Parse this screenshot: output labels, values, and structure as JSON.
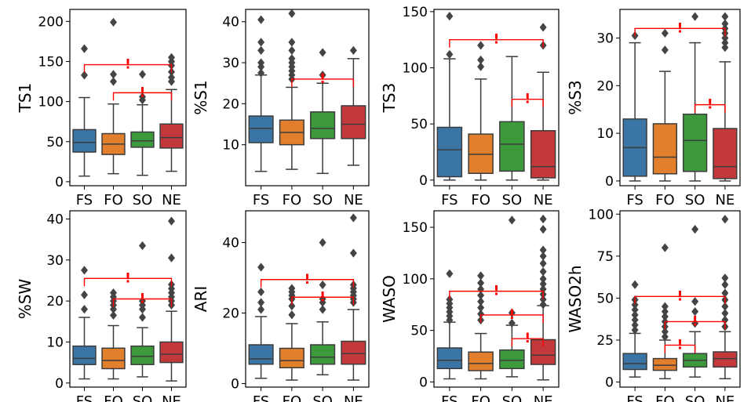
{
  "figure": {
    "colors": {
      "FS": "#3a75a6",
      "FO": "#e27f2d",
      "SO": "#3c9a3c",
      "NE": "#c3393b",
      "line": "#3c3c3c",
      "sig": "#ff0000",
      "frame": "#000000"
    },
    "sig_mark": "!"
  },
  "chart_data": [
    {
      "type": "box",
      "ylabel": "TS1",
      "categories": [
        "FS",
        "FO",
        "SO",
        "NE"
      ],
      "ylim": [
        -5,
        215
      ],
      "yticks": [
        0,
        50,
        100,
        150,
        200
      ],
      "boxes": [
        {
          "whislo": 7,
          "q1": 37,
          "med": 49,
          "q3": 65,
          "whishi": 105,
          "fliers": [
            133,
            166
          ]
        },
        {
          "whislo": 10,
          "q1": 34,
          "med": 47,
          "q3": 60,
          "whishi": 97,
          "fliers": [
            125,
            134,
            199
          ]
        },
        {
          "whislo": 8,
          "q1": 43,
          "med": 51,
          "q3": 62,
          "whishi": 96,
          "fliers": [
            102,
            106,
            134
          ]
        },
        {
          "whislo": 13,
          "q1": 42,
          "med": 55,
          "q3": 72,
          "whishi": 115,
          "fliers": [
            125,
            130,
            137,
            145,
            150,
            155
          ]
        }
      ],
      "significance": [
        {
          "from": "FS",
          "to": "NE",
          "y": 146
        },
        {
          "from": "FO",
          "to": "NE",
          "y": 111
        }
      ]
    },
    {
      "type": "box",
      "ylabel": "%S1",
      "categories": [
        "FS",
        "FO",
        "SO",
        "NE"
      ],
      "ylim": [
        0,
        43
      ],
      "yticks": [
        10,
        20,
        30,
        40
      ],
      "boxes": [
        {
          "whislo": 3.5,
          "q1": 10.5,
          "med": 14,
          "q3": 17,
          "whishi": 27,
          "fliers": [
            27.5,
            29,
            30,
            33,
            35,
            40.5
          ]
        },
        {
          "whislo": 4,
          "q1": 10,
          "med": 13,
          "q3": 16,
          "whishi": 24,
          "fliers": [
            26,
            27,
            28,
            29,
            30,
            31,
            33,
            35,
            42
          ]
        },
        {
          "whislo": 3,
          "q1": 11.5,
          "med": 14,
          "q3": 18,
          "whishi": 25,
          "fliers": [
            27,
            32.5
          ]
        },
        {
          "whislo": 5,
          "q1": 11.5,
          "med": 15,
          "q3": 19.5,
          "whishi": 31,
          "fliers": [
            33
          ]
        }
      ],
      "significance": [
        {
          "from": "FO",
          "to": "NE",
          "y": 26
        }
      ]
    },
    {
      "type": "box",
      "ylabel": "TS3",
      "categories": [
        "FS",
        "FO",
        "SO",
        "NE"
      ],
      "ylim": [
        -5,
        152
      ],
      "yticks": [
        0,
        50,
        100,
        150
      ],
      "boxes": [
        {
          "whislo": 0,
          "q1": 3,
          "med": 27,
          "q3": 47,
          "whishi": 108,
          "fliers": [
            112,
            146
          ]
        },
        {
          "whislo": 0,
          "q1": 6,
          "med": 23,
          "q3": 41,
          "whishi": 90,
          "fliers": [
            101,
            107,
            120
          ]
        },
        {
          "whislo": 0,
          "q1": 8,
          "med": 32,
          "q3": 52,
          "whishi": 110,
          "fliers": []
        },
        {
          "whislo": 0,
          "q1": 2,
          "med": 12,
          "q3": 44,
          "whishi": 96,
          "fliers": [
            120,
            136
          ]
        }
      ],
      "significance": [
        {
          "from": "FS",
          "to": "NE",
          "y": 125
        },
        {
          "from": "SO",
          "to": "NE",
          "y": 72
        }
      ]
    },
    {
      "type": "box",
      "ylabel": "%S3",
      "categories": [
        "FS",
        "FO",
        "SO",
        "NE"
      ],
      "ylim": [
        -1,
        36
      ],
      "yticks": [
        0,
        10,
        20,
        30
      ],
      "boxes": [
        {
          "whislo": 0,
          "q1": 1,
          "med": 7,
          "q3": 13,
          "whishi": 29,
          "fliers": [
            30.5
          ]
        },
        {
          "whislo": 0,
          "q1": 1.5,
          "med": 5,
          "q3": 12,
          "whishi": 23,
          "fliers": [
            27.5,
            31
          ]
        },
        {
          "whislo": 0,
          "q1": 2,
          "med": 8.5,
          "q3": 14,
          "whishi": 29,
          "fliers": [
            34.5
          ]
        },
        {
          "whislo": 0,
          "q1": 0.5,
          "med": 3,
          "q3": 11,
          "whishi": 25,
          "fliers": [
            28,
            29,
            30,
            31,
            32,
            33,
            34.5
          ]
        }
      ],
      "significance": [
        {
          "from": "FS",
          "to": "NE",
          "y": 32
        },
        {
          "from": "SO",
          "to": "NE",
          "y": 16
        }
      ]
    },
    {
      "type": "box",
      "ylabel": "%SW",
      "categories": [
        "FS",
        "FO",
        "SO",
        "NE"
      ],
      "ylim": [
        -1,
        42
      ],
      "yticks": [
        0,
        10,
        20,
        30,
        40
      ],
      "boxes": [
        {
          "whislo": 1,
          "q1": 4.5,
          "med": 6,
          "q3": 9,
          "whishi": 16,
          "fliers": [
            18,
            21.5,
            27.5
          ]
        },
        {
          "whislo": 1,
          "q1": 3.5,
          "med": 5.5,
          "q3": 8.5,
          "whishi": 14,
          "fliers": [
            16.5,
            18,
            19,
            20,
            21,
            22
          ]
        },
        {
          "whislo": 1.5,
          "q1": 4.5,
          "med": 6.5,
          "q3": 9,
          "whishi": 13.5,
          "fliers": [
            16,
            18,
            19,
            20,
            33.5
          ]
        },
        {
          "whislo": 0.5,
          "q1": 5,
          "med": 7,
          "q3": 10,
          "whishi": 17.5,
          "fliers": [
            19,
            20,
            21,
            22,
            23,
            24,
            30.5,
            39.5
          ]
        }
      ],
      "significance": [
        {
          "from": "FS",
          "to": "NE",
          "y": 25.5
        },
        {
          "from": "FO",
          "to": "NE",
          "y": 20.5
        }
      ]
    },
    {
      "type": "box",
      "ylabel": "ARI",
      "categories": [
        "FS",
        "FO",
        "SO",
        "NE"
      ],
      "ylim": [
        -1,
        49
      ],
      "yticks": [
        0,
        20,
        40
      ],
      "boxes": [
        {
          "whislo": 1.5,
          "q1": 5.5,
          "med": 7,
          "q3": 11,
          "whishi": 19,
          "fliers": [
            21,
            23,
            26,
            33
          ]
        },
        {
          "whislo": 1,
          "q1": 4.5,
          "med": 6.5,
          "q3": 10,
          "whishi": 17,
          "fliers": [
            19.5,
            22,
            24,
            25,
            26,
            27
          ]
        },
        {
          "whislo": 2.5,
          "q1": 5.5,
          "med": 7.5,
          "q3": 11,
          "whishi": 17.5,
          "fliers": [
            21,
            23,
            24,
            28,
            40
          ]
        },
        {
          "whislo": 1,
          "q1": 5.5,
          "med": 8.5,
          "q3": 12,
          "whishi": 21,
          "fliers": [
            23,
            24,
            25,
            26,
            27,
            28,
            37,
            47
          ]
        }
      ],
      "significance": [
        {
          "from": "FS",
          "to": "NE",
          "y": 29.5
        },
        {
          "from": "FO",
          "to": "NE",
          "y": 24.5
        }
      ]
    },
    {
      "type": "box",
      "ylabel": "WASO",
      "categories": [
        "FS",
        "FO",
        "SO",
        "NE"
      ],
      "ylim": [
        -5,
        166
      ],
      "yticks": [
        0,
        50,
        100,
        150
      ],
      "boxes": [
        {
          "whislo": 3,
          "q1": 13,
          "med": 21,
          "q3": 33,
          "whishi": 58,
          "fliers": [
            60,
            64,
            68,
            72,
            76,
            80,
            105
          ]
        },
        {
          "whislo": 3,
          "q1": 11,
          "med": 18,
          "q3": 29,
          "whishi": 47,
          "fliers": [
            60,
            66,
            72,
            78,
            84,
            90,
            96,
            103
          ]
        },
        {
          "whislo": 5,
          "q1": 13,
          "med": 21,
          "q3": 31,
          "whishi": 55,
          "fliers": [
            57,
            67,
            157
          ]
        },
        {
          "whislo": 2,
          "q1": 17,
          "med": 26,
          "q3": 41,
          "whishi": 74,
          "fliers": [
            75,
            80,
            85,
            90,
            95,
            100,
            107,
            115,
            122,
            128,
            148,
            158
          ]
        }
      ],
      "significance": [
        {
          "from": "FS",
          "to": "NE",
          "y": 88
        },
        {
          "from": "FO",
          "to": "NE",
          "y": 65
        },
        {
          "from": "SO",
          "to": "NE",
          "y": 42
        }
      ]
    },
    {
      "type": "box",
      "ylabel": "WASO2h",
      "categories": [
        "FS",
        "FO",
        "SO",
        "NE"
      ],
      "ylim": [
        -3,
        102
      ],
      "yticks": [
        0,
        25,
        50,
        75,
        100
      ],
      "boxes": [
        {
          "whislo": 3,
          "q1": 7.5,
          "med": 11,
          "q3": 17,
          "whishi": 29,
          "fliers": [
            31,
            34,
            37,
            40,
            43,
            46,
            49,
            58
          ]
        },
        {
          "whislo": 2,
          "q1": 7,
          "med": 10,
          "q3": 14,
          "whishi": 25,
          "fliers": [
            27,
            30,
            33,
            36,
            39,
            42,
            45,
            80
          ]
        },
        {
          "whislo": 3,
          "q1": 9,
          "med": 13,
          "q3": 17,
          "whishi": 30,
          "fliers": [
            35,
            42,
            48,
            91
          ]
        },
        {
          "whislo": 2,
          "q1": 9,
          "med": 14,
          "q3": 18,
          "whishi": 30,
          "fliers": [
            33,
            37,
            41,
            45,
            49,
            53,
            58,
            62,
            97
          ]
        }
      ],
      "significance": [
        {
          "from": "FS",
          "to": "NE",
          "y": 51
        },
        {
          "from": "FO",
          "to": "NE",
          "y": 36
        },
        {
          "from": "FO",
          "to": "SO",
          "y": 22
        }
      ]
    }
  ]
}
